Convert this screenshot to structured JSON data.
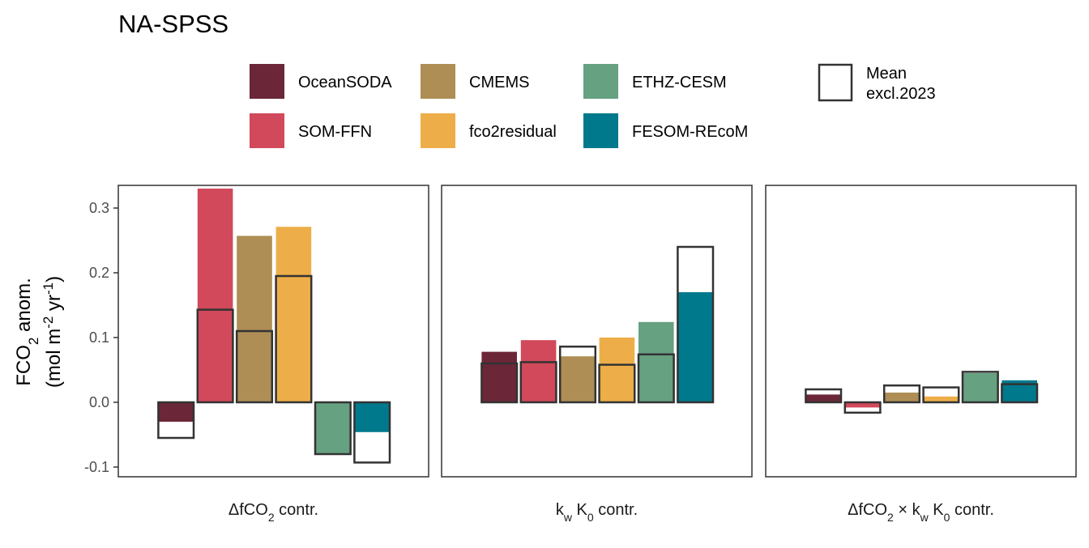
{
  "chart_data": {
    "type": "bar",
    "title": "NA-SPSS",
    "ylabel_line1": "FCO",
    "ylabel_line1_sub": "2",
    "ylabel_line1_rest": " anom.",
    "ylabel_line2_a": "(mol m",
    "ylabel_line2_sup1": "-2",
    "ylabel_line2_b": " yr",
    "ylabel_line2_sup2": "-1",
    "ylabel_line2_c": ")",
    "ylim": [
      -0.115,
      0.335
    ],
    "yticks": [
      -0.1,
      0.0,
      0.1,
      0.2,
      0.3
    ],
    "ytick_labels": [
      "-0.1",
      "0.0",
      "0.1",
      "0.2",
      "0.3"
    ],
    "grid": false,
    "legend_position": "top",
    "series": [
      {
        "name": "OceanSODA",
        "color": "#6b2737"
      },
      {
        "name": "SOM-FFN",
        "color": "#d1495b"
      },
      {
        "name": "CMEMS",
        "color": "#ae8e55"
      },
      {
        "name": "fco2residual",
        "color": "#edae49"
      },
      {
        "name": "ETHZ-CESM",
        "color": "#66a182"
      },
      {
        "name": "FESOM-REcoM",
        "color": "#00798c"
      }
    ],
    "mean_legend_line1": "Mean",
    "mean_legend_line2": "excl.2023",
    "panels": [
      {
        "label_parts": [
          {
            "t": "ΔfCO"
          },
          {
            "t": "2",
            "sub": true
          },
          {
            "t": " contr."
          }
        ],
        "values": [
          -0.03,
          0.33,
          0.257,
          0.271,
          -0.08,
          -0.046
        ],
        "mean_excl_2023": [
          -0.055,
          0.143,
          0.11,
          0.195,
          -0.08,
          -0.093
        ]
      },
      {
        "label_parts": [
          {
            "t": "k"
          },
          {
            "t": "w",
            "sub": true
          },
          {
            "t": " K"
          },
          {
            "t": "0",
            "sub": true
          },
          {
            "t": " contr."
          }
        ],
        "values": [
          0.078,
          0.096,
          0.071,
          0.1,
          0.124,
          0.17
        ],
        "mean_excl_2023": [
          0.06,
          0.062,
          0.086,
          0.058,
          0.074,
          0.24
        ]
      },
      {
        "label_parts": [
          {
            "t": "ΔfCO"
          },
          {
            "t": "2",
            "sub": true
          },
          {
            "t": " × k"
          },
          {
            "t": "w",
            "sub": true
          },
          {
            "t": " K"
          },
          {
            "t": "0",
            "sub": true
          },
          {
            "t": " contr."
          }
        ],
        "values": [
          0.012,
          -0.008,
          0.015,
          0.009,
          0.045,
          0.034
        ],
        "mean_excl_2023": [
          0.02,
          -0.016,
          0.026,
          0.023,
          0.047,
          0.028
        ]
      }
    ]
  }
}
